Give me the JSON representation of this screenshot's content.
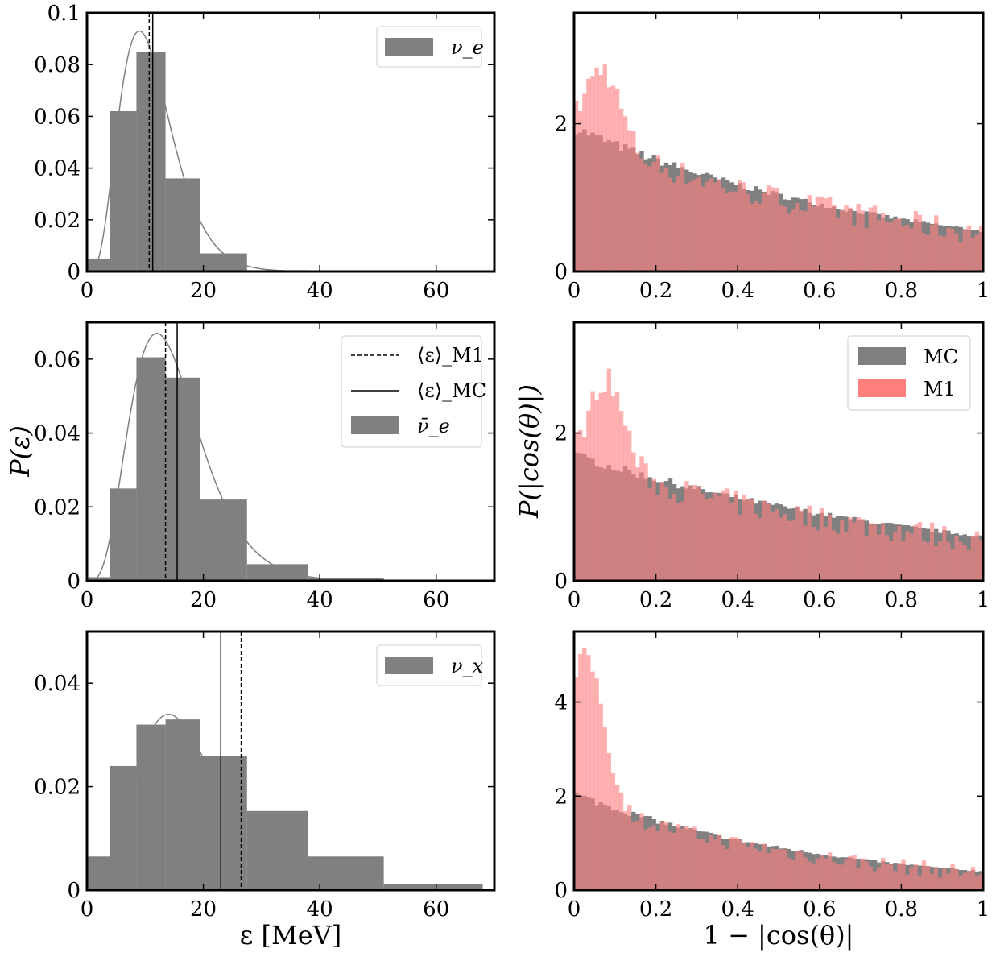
{
  "figure_labels": {
    "ylabel_left": "P(ε)",
    "ylabel_right": "P(|cos(θ)|)",
    "xlabel_left": "ε [MeV]",
    "xlabel_right": "1 − |cos(θ)|"
  },
  "colors": {
    "mc": "#808080",
    "m1": "#ff7f7f",
    "overlap": "#c04040",
    "vline": "#000000"
  },
  "chart_data": [
    {
      "id": "energy-nue",
      "type": "bar",
      "species": "ν_e",
      "legend": [
        "ν_e"
      ],
      "xlim": [
        0,
        70
      ],
      "ylim": [
        0,
        0.1
      ],
      "yticks": [
        "0",
        "0.02",
        "0.04",
        "0.06",
        "0.08",
        "0.1"
      ],
      "ytick_values": [
        0,
        0.02,
        0.04,
        0.06,
        0.08,
        0.1
      ],
      "xticks": [
        "0",
        "20",
        "40",
        "60"
      ],
      "xtick_values": [
        0,
        20,
        40,
        60
      ],
      "bin_edges": [
        0,
        4,
        8.5,
        13.5,
        19.5,
        27.5,
        38
      ],
      "values": [
        0.005,
        0.062,
        0.085,
        0.036,
        0.007,
        0.0005
      ],
      "mean_m1": 10.7,
      "mean_mc": 11.3,
      "fit_peak": 0.093,
      "fit_peak_x": 9.0
    },
    {
      "id": "energy-nuebar",
      "type": "bar",
      "species": "ν̄_e",
      "legend": [
        "⟨ε⟩_M1",
        "⟨ε⟩_MC",
        "ν̄_e"
      ],
      "xlim": [
        0,
        70
      ],
      "ylim": [
        0,
        0.07
      ],
      "yticks": [
        "0",
        "0.02",
        "0.04",
        "0.06"
      ],
      "ytick_values": [
        0,
        0.02,
        0.04,
        0.06
      ],
      "xticks": [
        "0",
        "20",
        "40",
        "60"
      ],
      "xtick_values": [
        0,
        20,
        40,
        60
      ],
      "bin_edges": [
        0,
        4,
        8.5,
        13.5,
        19.5,
        27.5,
        38,
        51
      ],
      "values": [
        0.001,
        0.025,
        0.0605,
        0.055,
        0.022,
        0.0045,
        0.0008
      ],
      "mean_m1": 13.5,
      "mean_mc": 15.5,
      "fit_peak": 0.067,
      "fit_peak_x": 12.0
    },
    {
      "id": "energy-nux",
      "type": "bar",
      "species": "ν_x",
      "legend": [
        "ν_x"
      ],
      "xlim": [
        0,
        70
      ],
      "ylim": [
        0,
        0.05
      ],
      "yticks": [
        "0",
        "0.02",
        "0.04"
      ],
      "ytick_values": [
        0,
        0.02,
        0.04
      ],
      "xticks": [
        "0",
        "20",
        "40",
        "60"
      ],
      "xtick_values": [
        0,
        20,
        40,
        60
      ],
      "bin_edges": [
        0,
        4,
        8.5,
        13.5,
        19.5,
        27.5,
        38,
        51,
        68
      ],
      "values": [
        0.0065,
        0.024,
        0.032,
        0.033,
        0.026,
        0.0153,
        0.0065,
        0.0012
      ],
      "mean_m1": 26.5,
      "mean_mc": 23.0,
      "fit_peak": 0.034,
      "fit_peak_x": 14.0
    },
    {
      "id": "angle-nue",
      "type": "bar",
      "series": [
        {
          "name": "MC"
        },
        {
          "name": "M1"
        }
      ],
      "xlim": [
        0,
        1
      ],
      "ylim": [
        0,
        3.5
      ],
      "yticks": [
        "0",
        "2"
      ],
      "ytick_values": [
        0,
        2
      ],
      "xticks": [
        "0",
        "0.2",
        "0.4",
        "0.6",
        "0.8",
        "1"
      ],
      "xtick_values": [
        0,
        0.2,
        0.4,
        0.6,
        0.8,
        1
      ],
      "bins": 100,
      "mc_start": 1.95,
      "mc_end": 0.55,
      "m1_peak": 3.0,
      "m1_peak_x": 0.07,
      "m1_end": 0.55
    },
    {
      "id": "angle-nuebar",
      "type": "bar",
      "series": [
        {
          "name": "MC"
        },
        {
          "name": "M1"
        }
      ],
      "legend": [
        "MC",
        "M1"
      ],
      "xlim": [
        0,
        1
      ],
      "ylim": [
        0,
        3.5
      ],
      "yticks": [
        "0",
        "2"
      ],
      "ytick_values": [
        0,
        2
      ],
      "xticks": [
        "0",
        "0.2",
        "0.4",
        "0.6",
        "0.8",
        "1"
      ],
      "xtick_values": [
        0,
        0.2,
        0.4,
        0.6,
        0.8,
        1
      ],
      "bins": 100,
      "mc_start": 1.7,
      "mc_end": 0.6,
      "m1_peak": 2.95,
      "m1_peak_x": 0.08,
      "m1_end": 0.58
    },
    {
      "id": "angle-nux",
      "type": "bar",
      "series": [
        {
          "name": "MC"
        },
        {
          "name": "M1"
        }
      ],
      "xlim": [
        0,
        1
      ],
      "ylim": [
        0,
        5.5
      ],
      "yticks": [
        "0",
        "2",
        "4"
      ],
      "ytick_values": [
        0,
        2,
        4
      ],
      "xticks": [
        "0",
        "0.2",
        "0.4",
        "0.6",
        "0.8",
        "1"
      ],
      "xtick_values": [
        0,
        0.2,
        0.4,
        0.6,
        0.8,
        1
      ],
      "bins": 100,
      "mc_start": 2.05,
      "mc_end": 0.4,
      "m1_peak": 5.2,
      "m1_peak_x": 0.03,
      "m1_end": 0.38
    }
  ]
}
